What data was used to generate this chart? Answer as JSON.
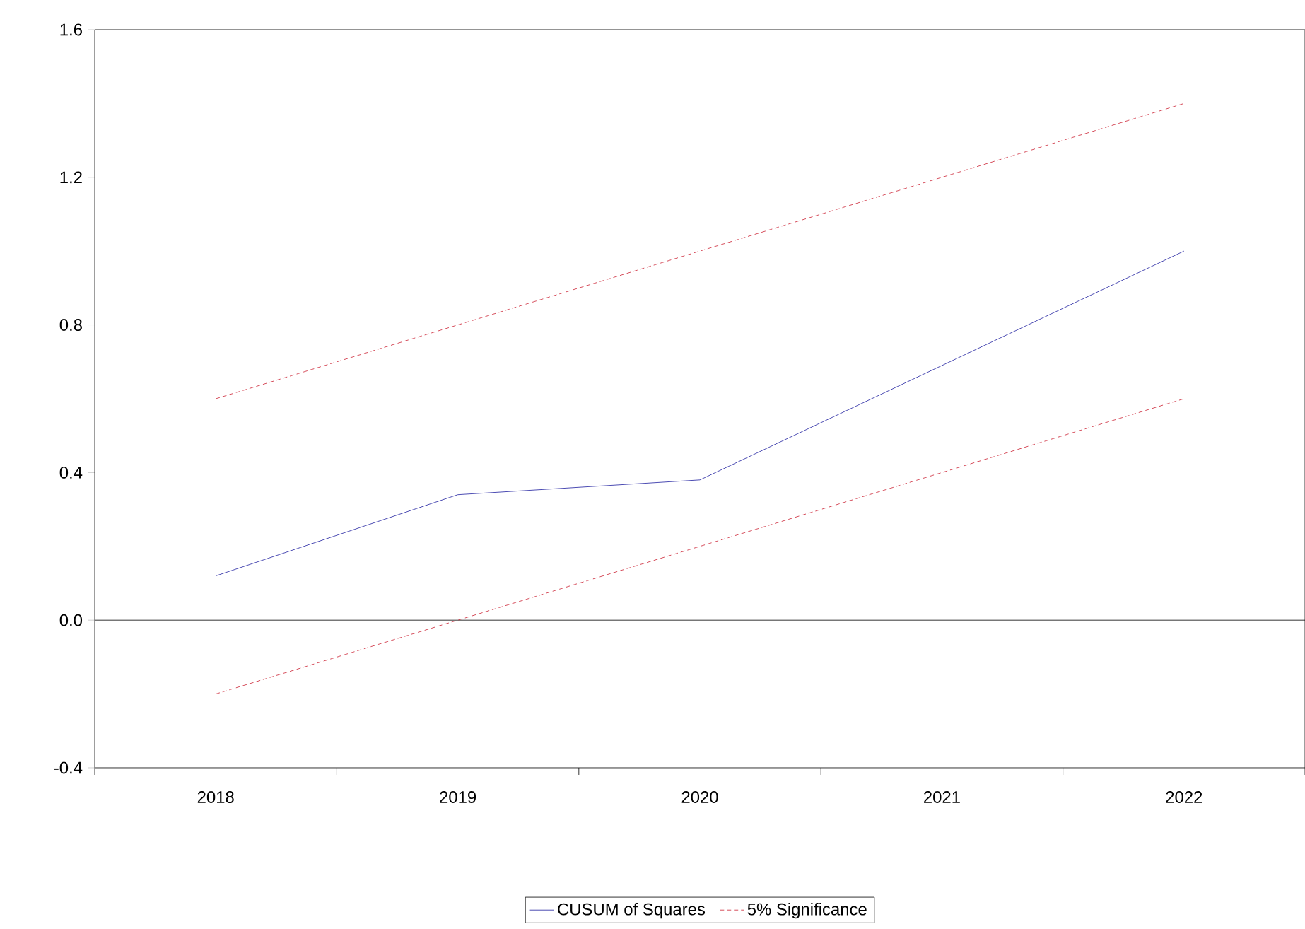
{
  "chart_data": {
    "type": "line",
    "categories": [
      "2018",
      "2019",
      "2020",
      "2021",
      "2022"
    ],
    "series": [
      {
        "name": "CUSUM of Squares",
        "color": "#2020a0",
        "line_style": "solid",
        "values": [
          0.12,
          0.34,
          0.38,
          0.69,
          1.0
        ]
      },
      {
        "name": "5% Significance",
        "color": "#cc2233",
        "line_style": "dashed",
        "values": [
          0.6,
          0.8,
          1.0,
          1.2,
          1.4
        ]
      },
      {
        "color": "#cc2233",
        "line_style": "dashed",
        "values": [
          -0.2,
          0.0,
          0.2,
          0.4,
          0.6
        ]
      }
    ],
    "ylim": [
      -0.4,
      1.6
    ],
    "yticks": [
      {
        "value": -0.4,
        "label": "-0.4"
      },
      {
        "value": 0,
        "label": "0.0"
      },
      {
        "value": 0.4,
        "label": "0.4"
      },
      {
        "value": 0.8,
        "label": "0.8"
      },
      {
        "value": 1.2,
        "label": "1.2"
      },
      {
        "value": 1.6,
        "label": "1.6"
      }
    ],
    "ref_lines": [
      {
        "axis": "y",
        "value": 0,
        "color": "#000000",
        "line_style": "solid"
      }
    ],
    "legend": "bottom"
  }
}
